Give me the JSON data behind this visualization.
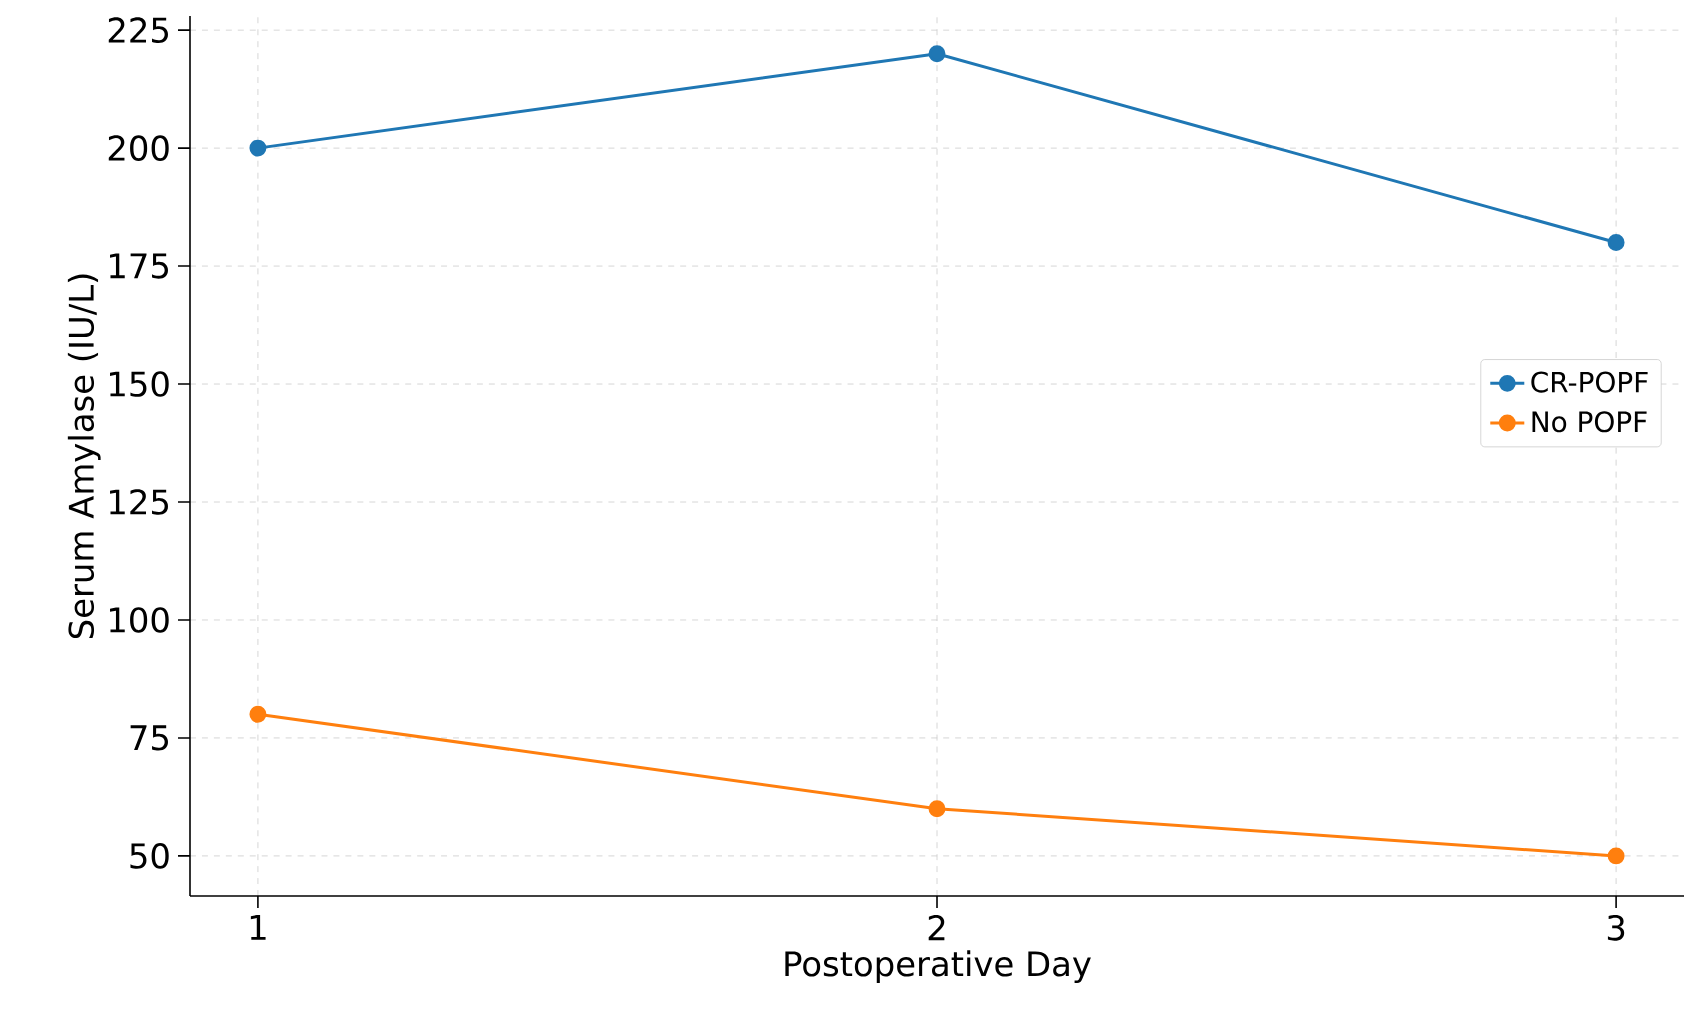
{
  "chart_data": {
    "type": "line",
    "xlabel": "Postoperative Day",
    "ylabel": "Serum Amylase (IU/L)",
    "x": [
      1,
      2,
      3
    ],
    "series": [
      {
        "name": "CR-POPF",
        "color": "#1f77b4",
        "values": [
          200,
          220,
          180
        ]
      },
      {
        "name": "No POPF",
        "color": "#ff7f0e",
        "values": [
          80,
          60,
          50
        ]
      }
    ],
    "xlim": [
      0.9,
      3.1
    ],
    "ylim": [
      41.5,
      228
    ],
    "xticks": [
      1,
      2,
      3
    ],
    "yticks": [
      50,
      75,
      100,
      125,
      150,
      175,
      200,
      225
    ],
    "grid": true,
    "legend": "right",
    "marker": "circle",
    "line_style": "solid"
  }
}
